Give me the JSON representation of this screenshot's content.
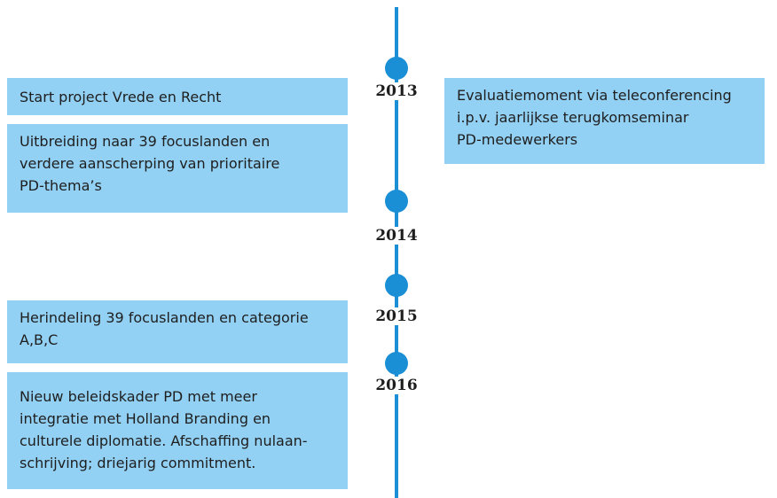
{
  "years": [
    "2013",
    "2014",
    "2015",
    "2016"
  ],
  "left_events": [
    {
      "lines": [
        "Start project Vrede en Recht"
      ]
    },
    {
      "lines": [
        "Uitbreiding naar 39 focuslanden en",
        "verdere aanscherping van prioritaire",
        "PD-thema’s"
      ]
    },
    {
      "lines": [
        "Herindeling 39 focuslanden en categorie",
        "A,B,C"
      ]
    },
    {
      "lines": [
        "Nieuw beleidskader PD met meer",
        "integratie met Holland Branding en",
        "culturele diplomatie. Afschaffing nulaan-",
        "schrijving; driejarig commitment."
      ]
    }
  ],
  "right_events": [
    {
      "lines": [
        "Evaluatiemoment via teleconferencing",
        "i.p.v. jaarlijkse terugkomseminar",
        "PD-medewerkers"
      ]
    }
  ]
}
